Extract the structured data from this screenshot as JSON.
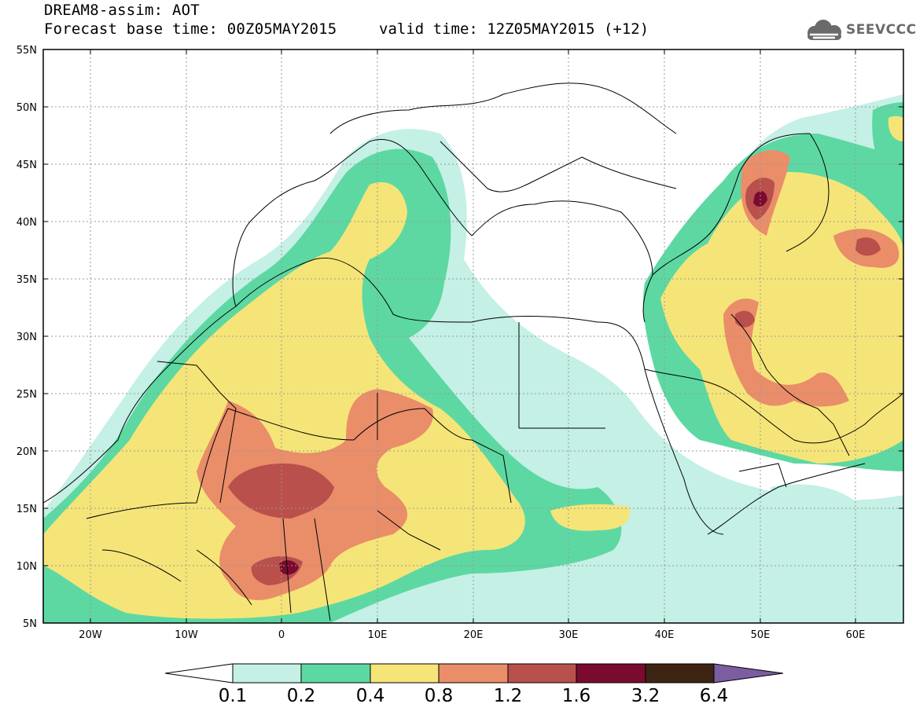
{
  "title": {
    "line1": "DREAM8-assim: AOT",
    "line2": "Forecast base time: 00Z05MAY2015",
    "valid": "valid time: 12Z05MAY2015 (+12)"
  },
  "logo": {
    "text": "SEEVCCC",
    "icon": "cloud-icon",
    "color": "#6a6a6a"
  },
  "chart_data": {
    "type": "heatmap",
    "lon_range": [
      -25,
      65
    ],
    "lat_range": [
      5,
      55
    ],
    "x_ticks": [
      "20W",
      "10W",
      "0",
      "10E",
      "20E",
      "30E",
      "40E",
      "50E",
      "60E"
    ],
    "y_ticks": [
      "55N",
      "50N",
      "45N",
      "40N",
      "35N",
      "30N",
      "25N",
      "20N",
      "15N",
      "10N",
      "5N"
    ],
    "levels": [
      "0.1",
      "0.2",
      "0.4",
      "0.8",
      "1.2",
      "1.6",
      "3.2",
      "6.4"
    ],
    "colors": [
      "#c4f0e6",
      "#5dd8a2",
      "#f5e578",
      "#ea8d69",
      "#b9504b",
      "#7a0a2e",
      "#3e2412",
      "#7b5ea0"
    ],
    "grid": true
  }
}
